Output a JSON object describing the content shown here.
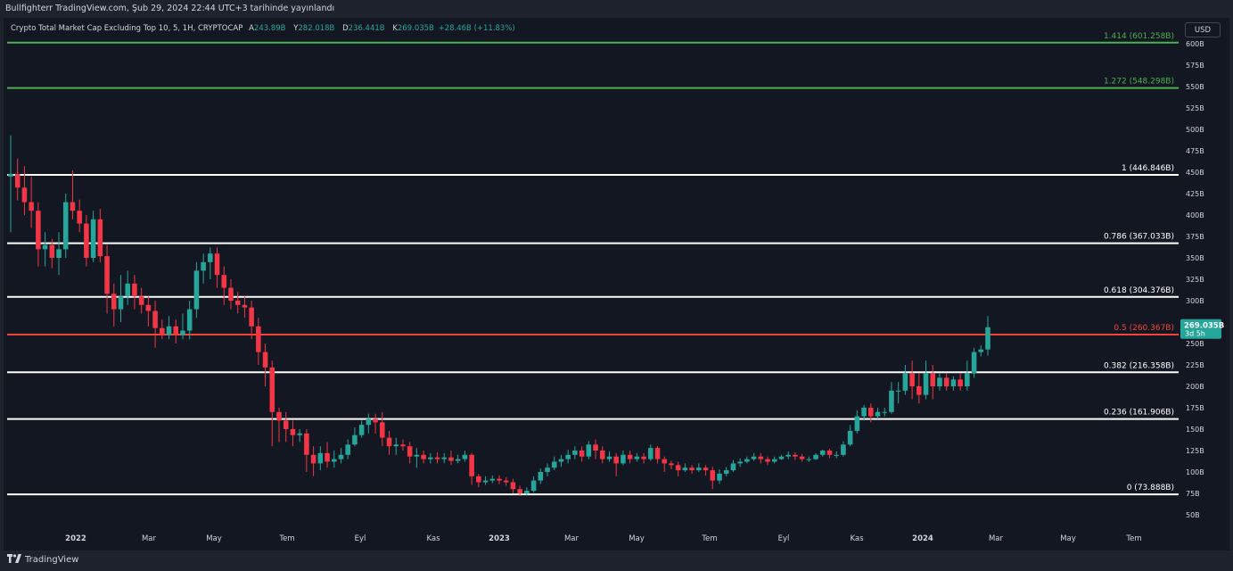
{
  "header": {
    "publish_line": "Bullfighterr TradingView.com, Şub 29, 2024 22:44 UTC+3 tarihinde yayınlandı"
  },
  "legend": {
    "symbol": "Crypto Total Market Cap Excluding Top 10, 5, 1H, CRYPTOCAP",
    "open_key": "A",
    "open": "243.89B",
    "high_key": "Y",
    "high": "282.018B",
    "low_key": "D",
    "low": "236.441B",
    "close_key": "K",
    "close": "269.035B",
    "change": "+28.46B (+11.83%)"
  },
  "currency_button": "USD",
  "footer": {
    "brand": "TradingView"
  },
  "colors": {
    "up": "#26a69a",
    "down": "#f23645",
    "background": "#131722",
    "fib_white": "#ffffff",
    "fib_green": "#4caf50",
    "fib_red": "#f44336"
  },
  "chart_data": {
    "type": "candlestick",
    "y_unit": "B",
    "y_range": [
      40,
      630
    ],
    "y_ticks": [
      "50B",
      "75B",
      "100B",
      "125B",
      "150B",
      "175B",
      "200B",
      "225B",
      "250B",
      "275B",
      "300B",
      "325B",
      "350B",
      "375B",
      "400B",
      "425B",
      "450B",
      "475B",
      "500B",
      "525B",
      "550B",
      "575B",
      "600B"
    ],
    "x_ticks": [
      "2022",
      "Mar",
      "May",
      "Tem",
      "Eyl",
      "Kas",
      "2023",
      "Mar",
      "May",
      "Tem",
      "Eyl",
      "Kas",
      "2024",
      "Mar",
      "May",
      "Tem"
    ],
    "last_price": {
      "value": 269.035,
      "label": "269.035B",
      "countdown": "3d 5h"
    },
    "fib_levels": [
      {
        "label": "1.414 (601.258B)",
        "value": 601.258,
        "color": "green"
      },
      {
        "label": "1.272 (548.298B)",
        "value": 548.298,
        "color": "green"
      },
      {
        "label": "1 (446.846B)",
        "value": 446.846,
        "color": "white"
      },
      {
        "label": "0.786 (367.033B)",
        "value": 367.033,
        "color": "white"
      },
      {
        "label": "0.618 (304.376B)",
        "value": 304.376,
        "color": "white"
      },
      {
        "label": "0.5 (260.367B)",
        "value": 260.367,
        "color": "red"
      },
      {
        "label": "0.382 (216.358B)",
        "value": 216.358,
        "color": "white"
      },
      {
        "label": "0.236 (161.906B)",
        "value": 161.906,
        "color": "white"
      },
      {
        "label": "0 (73.888B)",
        "value": 73.888,
        "color": "white"
      }
    ],
    "candles": [
      [
        445,
        448,
        380,
        493
      ],
      [
        448,
        432,
        417,
        466
      ],
      [
        432,
        415,
        400,
        457
      ],
      [
        415,
        405,
        385,
        445
      ],
      [
        405,
        360,
        340,
        415
      ],
      [
        360,
        365,
        340,
        380
      ],
      [
        365,
        350,
        338,
        372
      ],
      [
        350,
        360,
        330,
        380
      ],
      [
        360,
        415,
        350,
        425
      ],
      [
        415,
        405,
        395,
        452
      ],
      [
        405,
        390,
        380,
        418
      ],
      [
        390,
        350,
        340,
        400
      ],
      [
        350,
        395,
        345,
        405
      ],
      [
        395,
        352,
        345,
        407
      ],
      [
        352,
        308,
        285,
        365
      ],
      [
        308,
        290,
        270,
        320
      ],
      [
        290,
        305,
        275,
        330
      ],
      [
        305,
        320,
        295,
        335
      ],
      [
        320,
        305,
        290,
        330
      ],
      [
        305,
        295,
        285,
        315
      ],
      [
        295,
        288,
        270,
        305
      ],
      [
        288,
        268,
        245,
        300
      ],
      [
        268,
        260,
        255,
        278
      ],
      [
        260,
        270,
        255,
        282
      ],
      [
        270,
        260,
        250,
        278
      ],
      [
        260,
        265,
        255,
        285
      ],
      [
        265,
        290,
        255,
        300
      ],
      [
        290,
        335,
        280,
        345
      ],
      [
        335,
        345,
        320,
        355
      ],
      [
        345,
        355,
        325,
        362
      ],
      [
        355,
        330,
        315,
        362
      ],
      [
        330,
        315,
        295,
        340
      ],
      [
        315,
        300,
        290,
        325
      ],
      [
        300,
        295,
        285,
        310
      ],
      [
        295,
        292,
        280,
        305
      ],
      [
        292,
        270,
        255,
        300
      ],
      [
        270,
        240,
        225,
        280
      ],
      [
        240,
        222,
        200,
        250
      ],
      [
        222,
        170,
        130,
        230
      ],
      [
        170,
        160,
        135,
        175
      ],
      [
        160,
        150,
        135,
        170
      ],
      [
        150,
        143,
        130,
        160
      ],
      [
        143,
        145,
        135,
        150
      ],
      [
        145,
        120,
        100,
        150
      ],
      [
        120,
        110,
        95,
        130
      ],
      [
        110,
        122,
        102,
        130
      ],
      [
        122,
        112,
        105,
        135
      ],
      [
        112,
        115,
        105,
        125
      ],
      [
        115,
        120,
        110,
        128
      ],
      [
        120,
        132,
        115,
        138
      ],
      [
        132,
        143,
        130,
        152
      ],
      [
        143,
        155,
        140,
        160
      ],
      [
        155,
        162,
        145,
        168
      ],
      [
        162,
        158,
        145,
        168
      ],
      [
        158,
        140,
        130,
        170
      ],
      [
        140,
        130,
        120,
        148
      ],
      [
        130,
        132,
        120,
        140
      ],
      [
        132,
        130,
        125,
        138
      ],
      [
        130,
        118,
        110,
        135
      ],
      [
        118,
        120,
        105,
        128
      ],
      [
        120,
        115,
        110,
        125
      ],
      [
        115,
        117,
        110,
        122
      ],
      [
        117,
        115,
        110,
        123
      ],
      [
        115,
        117,
        110,
        122
      ],
      [
        117,
        113,
        108,
        125
      ],
      [
        113,
        115,
        110,
        120
      ],
      [
        115,
        120,
        112,
        125
      ],
      [
        120,
        95,
        85,
        122
      ],
      [
        95,
        88,
        82,
        98
      ],
      [
        88,
        90,
        85,
        95
      ],
      [
        90,
        92,
        87,
        96
      ],
      [
        92,
        90,
        86,
        96
      ],
      [
        90,
        88,
        84,
        94
      ],
      [
        88,
        80,
        75,
        92
      ],
      [
        80,
        75,
        72,
        84
      ],
      [
        75,
        78,
        73,
        82
      ],
      [
        78,
        90,
        76,
        95
      ],
      [
        90,
        100,
        86,
        104
      ],
      [
        100,
        105,
        95,
        110
      ],
      [
        105,
        112,
        102,
        118
      ],
      [
        112,
        115,
        106,
        120
      ],
      [
        115,
        120,
        110,
        126
      ],
      [
        120,
        125,
        115,
        130
      ],
      [
        125,
        118,
        112,
        130
      ],
      [
        118,
        132,
        115,
        136
      ],
      [
        132,
        125,
        115,
        138
      ],
      [
        125,
        115,
        110,
        130
      ],
      [
        115,
        118,
        112,
        124
      ],
      [
        118,
        110,
        95,
        122
      ],
      [
        110,
        120,
        108,
        125
      ],
      [
        120,
        115,
        110,
        125
      ],
      [
        115,
        118,
        112,
        122
      ],
      [
        118,
        115,
        110,
        122
      ],
      [
        115,
        128,
        113,
        132
      ],
      [
        128,
        115,
        110,
        130
      ],
      [
        115,
        110,
        100,
        118
      ],
      [
        110,
        108,
        103,
        113
      ],
      [
        108,
        102,
        95,
        112
      ],
      [
        102,
        105,
        100,
        110
      ],
      [
        105,
        102,
        98,
        108
      ],
      [
        102,
        105,
        100,
        110
      ],
      [
        105,
        102,
        96,
        108
      ],
      [
        102,
        90,
        80,
        106
      ],
      [
        90,
        98,
        86,
        103
      ],
      [
        98,
        102,
        95,
        106
      ],
      [
        102,
        110,
        100,
        114
      ],
      [
        110,
        112,
        106,
        116
      ],
      [
        112,
        115,
        110,
        118
      ],
      [
        115,
        118,
        113,
        122
      ],
      [
        118,
        115,
        110,
        122
      ],
      [
        115,
        112,
        108,
        118
      ],
      [
        112,
        115,
        110,
        118
      ],
      [
        115,
        118,
        114,
        120
      ],
      [
        118,
        120,
        115,
        124
      ],
      [
        120,
        118,
        114,
        123
      ],
      [
        118,
        115,
        112,
        121
      ],
      [
        115,
        115,
        112,
        118
      ],
      [
        115,
        120,
        114,
        122
      ],
      [
        120,
        125,
        118,
        126
      ],
      [
        125,
        120,
        116,
        127
      ],
      [
        120,
        120,
        116,
        124
      ],
      [
        120,
        132,
        118,
        136
      ],
      [
        132,
        148,
        130,
        155
      ],
      [
        148,
        165,
        145,
        172
      ],
      [
        165,
        175,
        160,
        178
      ],
      [
        175,
        165,
        158,
        180
      ],
      [
        165,
        170,
        162,
        175
      ],
      [
        170,
        170,
        165,
        175
      ],
      [
        170,
        195,
        168,
        205
      ],
      [
        195,
        195,
        180,
        205
      ],
      [
        195,
        215,
        190,
        225
      ],
      [
        215,
        200,
        185,
        230
      ],
      [
        200,
        190,
        180,
        215
      ],
      [
        190,
        215,
        185,
        230
      ],
      [
        215,
        200,
        185,
        225
      ],
      [
        200,
        210,
        195,
        215
      ],
      [
        210,
        200,
        195,
        215
      ],
      [
        200,
        208,
        195,
        212
      ],
      [
        208,
        200,
        195,
        215
      ],
      [
        200,
        215,
        195,
        230
      ],
      [
        215,
        240,
        210,
        245
      ],
      [
        240,
        243,
        235,
        248
      ],
      [
        243,
        269,
        236,
        282
      ]
    ]
  }
}
